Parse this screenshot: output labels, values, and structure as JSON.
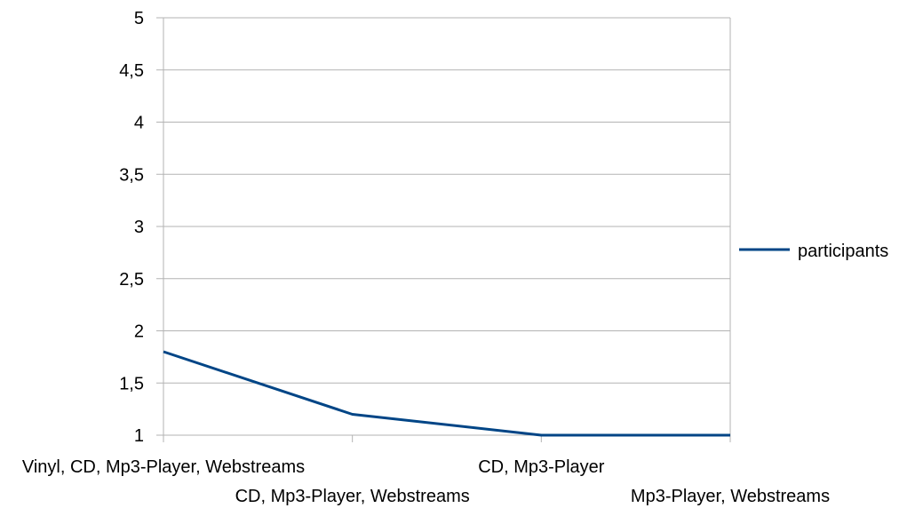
{
  "chart_data": {
    "type": "line",
    "categories": [
      "Vinyl, CD, Mp3-Player, Webstreams",
      "CD, Mp3-Player, Webstreams",
      "CD, Mp3-Player",
      "Mp3-Player, Webstreams"
    ],
    "series": [
      {
        "name": "participants",
        "values": [
          1.8,
          1.2,
          1.0,
          1.0
        ],
        "color": "#004586"
      }
    ],
    "ylim": [
      1,
      5
    ],
    "yticks": [
      "1",
      "1,5",
      "2",
      "2,5",
      "3",
      "3,5",
      "4",
      "4,5",
      "5"
    ],
    "ytick_values": [
      1,
      1.5,
      2,
      2.5,
      3,
      3.5,
      4,
      4.5,
      5
    ],
    "grid": true,
    "legend": "right",
    "title": "",
    "xlabel": "",
    "ylabel": ""
  }
}
